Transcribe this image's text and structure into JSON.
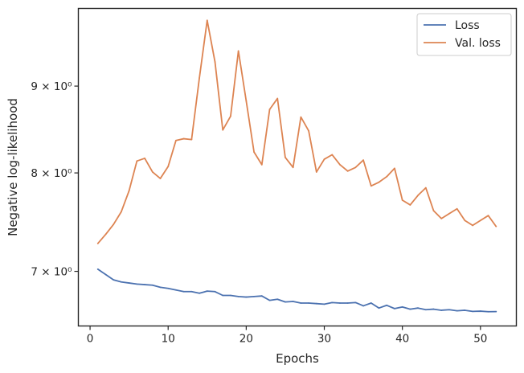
{
  "chart_data": {
    "type": "line",
    "xlabel": "Epochs",
    "ylabel": "Negative log-likelihood",
    "yscale": "log",
    "xlim": [
      -1.5,
      54.6
    ],
    "ylim": [
      6.5,
      10.0
    ],
    "xticks": [
      0,
      10,
      20,
      30,
      40,
      50
    ],
    "xtick_labels": [
      "0",
      "10",
      "20",
      "30",
      "40",
      "50"
    ],
    "yticks": [
      7,
      8,
      9
    ],
    "ytick_labels": [
      "7 × 10⁰",
      "8 × 10⁰",
      "9 × 10⁰"
    ],
    "grid": false,
    "legend": "top-right",
    "x": [
      1,
      2,
      3,
      4,
      5,
      6,
      7,
      8,
      9,
      10,
      11,
      12,
      13,
      14,
      15,
      16,
      17,
      18,
      19,
      20,
      21,
      22,
      23,
      24,
      25,
      26,
      27,
      28,
      29,
      30,
      31,
      32,
      33,
      34,
      35,
      36,
      37,
      38,
      39,
      40,
      41,
      42,
      43,
      44,
      45,
      46,
      47,
      48,
      49,
      50,
      51,
      52
    ],
    "series": [
      {
        "name": "Loss",
        "color": "#4c72b0",
        "values": [
          7.02,
          6.97,
          6.92,
          6.9,
          6.89,
          6.88,
          6.875,
          6.87,
          6.85,
          6.84,
          6.825,
          6.81,
          6.81,
          6.795,
          6.815,
          6.81,
          6.775,
          6.775,
          6.765,
          6.76,
          6.765,
          6.77,
          6.73,
          6.74,
          6.715,
          6.72,
          6.705,
          6.705,
          6.7,
          6.695,
          6.71,
          6.705,
          6.705,
          6.71,
          6.68,
          6.705,
          6.66,
          6.685,
          6.655,
          6.67,
          6.65,
          6.66,
          6.645,
          6.65,
          6.64,
          6.645,
          6.635,
          6.64,
          6.63,
          6.632,
          6.627,
          6.628
        ]
      },
      {
        "name": "Val. loss",
        "color": "#dd8452",
        "values": [
          7.27,
          7.36,
          7.46,
          7.59,
          7.81,
          8.13,
          8.16,
          8.01,
          7.94,
          8.07,
          8.36,
          8.38,
          8.37,
          9.1,
          9.84,
          9.3,
          8.48,
          8.64,
          9.44,
          8.82,
          8.23,
          8.09,
          8.72,
          8.85,
          8.17,
          8.06,
          8.63,
          8.47,
          8.01,
          8.15,
          8.2,
          8.09,
          8.02,
          8.06,
          8.14,
          7.86,
          7.9,
          7.96,
          8.05,
          7.71,
          7.66,
          7.76,
          7.84,
          7.6,
          7.52,
          7.57,
          7.62,
          7.5,
          7.45,
          7.5,
          7.55,
          7.44
        ]
      }
    ]
  }
}
